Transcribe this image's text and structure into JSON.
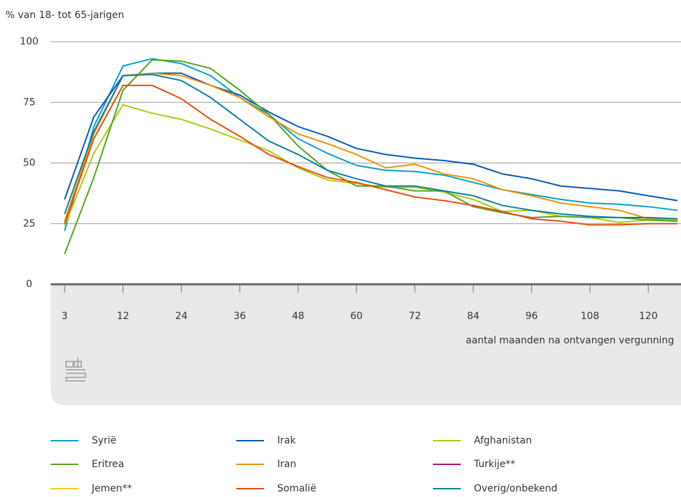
{
  "chart_data": {
    "type": "line",
    "y_label": "% van 18- tot 65-jarigen",
    "x_label": "aantal maanden na ontvangen vergunning",
    "categories": [
      "3",
      null,
      "12",
      null,
      "24",
      null,
      "36",
      null,
      "48",
      null,
      "60",
      null,
      "72",
      null,
      "84",
      null,
      "96",
      null,
      "108",
      null,
      "120",
      null
    ],
    "ylim": [
      0,
      100
    ],
    "yticks": [
      0,
      25,
      50,
      75,
      100
    ],
    "grid": true,
    "series": [
      {
        "name": "Syrië",
        "color": "#00a1cd",
        "values": [
          22,
          65,
          90,
          93,
          91,
          86,
          77,
          70,
          60,
          54,
          49,
          47,
          46.5,
          45,
          42,
          39,
          37,
          35,
          33.5,
          33,
          32,
          30.5
        ]
      },
      {
        "name": "Irak",
        "color": "#0058b8",
        "values": [
          35,
          69,
          86,
          87,
          87,
          82,
          78,
          71,
          65,
          61,
          56,
          53.5,
          52,
          51,
          49.5,
          45.5,
          43.5,
          40.5,
          39.5,
          38.5,
          36.5,
          34.5
        ]
      },
      {
        "name": "Afghanistan",
        "color": "#afcb05",
        "values": [
          24,
          54,
          74,
          70.5,
          68,
          64,
          59.5,
          55,
          48,
          43,
          41.5,
          40,
          40,
          38,
          35,
          30,
          30.5,
          28,
          27.5,
          25.5,
          26.5,
          26.5
        ]
      },
      {
        "name": "Eritrea",
        "color": "#53a31d",
        "values": [
          12.5,
          44,
          80,
          92.5,
          92,
          89,
          80,
          70,
          57,
          47,
          40.5,
          40.5,
          38.5,
          38.5,
          32,
          29.5,
          27.5,
          28,
          27.5,
          27.5,
          26.5,
          26
        ]
      },
      {
        "name": "Iran",
        "color": "#f39200",
        "values": [
          26,
          62,
          86,
          87,
          86,
          82,
          77,
          69,
          62,
          58,
          53.5,
          48,
          49.5,
          45.5,
          43.5,
          39,
          36.5,
          33.5,
          32,
          30.5,
          27,
          27
        ]
      },
      {
        "name": "Turkije**",
        "color": "#af0e80",
        "values": [
          null,
          null,
          null,
          null,
          null,
          null,
          null,
          null,
          null,
          null,
          null,
          null,
          null,
          null,
          null,
          null,
          null,
          null,
          null,
          null,
          null,
          null
        ]
      },
      {
        "name": "Jemen**",
        "color": "#ffcc00",
        "values": [
          null,
          null,
          null,
          null,
          null,
          null,
          null,
          null,
          null,
          null,
          null,
          null,
          null,
          null,
          null,
          null,
          null,
          null,
          null,
          null,
          null,
          null
        ]
      },
      {
        "name": "Somalië",
        "color": "#e94c0a",
        "values": [
          25,
          60,
          82,
          82,
          76.5,
          68,
          61,
          53.5,
          48.5,
          44,
          42,
          39,
          36,
          34.5,
          32.5,
          30,
          27,
          26,
          24.5,
          24.5,
          25,
          25
        ]
      },
      {
        "name": "Overig/onbekend",
        "color": "#0581a2",
        "values": [
          29,
          63,
          86,
          86.5,
          84,
          77,
          68,
          59,
          53.5,
          47,
          43.5,
          40.5,
          40.5,
          38.5,
          36.5,
          32.5,
          30.5,
          29,
          28,
          27.5,
          27.5,
          27
        ]
      }
    ]
  }
}
